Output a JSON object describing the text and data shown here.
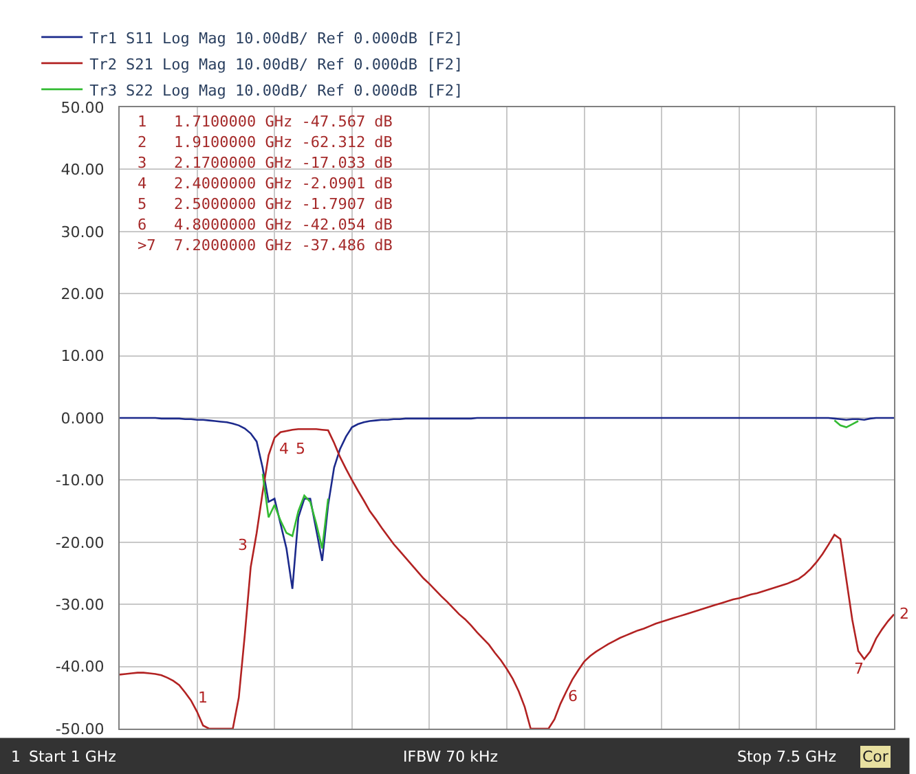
{
  "chart_data": {
    "type": "line",
    "categories": [
      null,
      null,
      null,
      null,
      null,
      null,
      null,
      null,
      null,
      null,
      null,
      null,
      null,
      null,
      null,
      null,
      null,
      null,
      null,
      null,
      null,
      null,
      null,
      null,
      null,
      null,
      null,
      null,
      null,
      null,
      null,
      null,
      null,
      null,
      null,
      null,
      null,
      null,
      null,
      null,
      null,
      null,
      null,
      null,
      null,
      null,
      null,
      null,
      null,
      null,
      null,
      null,
      null,
      null,
      null,
      null,
      null,
      null,
      null,
      null,
      null,
      null,
      null,
      null,
      null,
      null,
      null,
      null,
      null,
      null,
      null,
      null,
      null,
      null,
      null,
      null,
      null,
      null,
      null,
      null,
      null,
      null,
      null,
      null,
      null,
      null,
      null,
      null,
      null,
      null,
      null,
      null,
      null,
      null,
      null,
      null,
      null,
      null,
      null,
      null,
      null,
      null,
      null,
      null,
      null,
      null,
      null,
      null,
      null,
      null,
      null,
      null,
      null,
      null,
      null,
      null,
      null,
      null,
      null,
      null,
      null,
      null,
      null,
      null,
      null,
      null,
      null,
      null,
      null,
      null,
      null
    ],
    "ylim": [
      -50,
      50
    ],
    "yticks": [
      {
        "value": 50,
        "label": "50.00"
      },
      {
        "value": 40,
        "label": "40.00"
      },
      {
        "value": 30,
        "label": "30.00"
      },
      {
        "value": 20,
        "label": "20.00"
      },
      {
        "value": 10,
        "label": "10.00"
      },
      {
        "value": 0,
        "label": "0.000"
      },
      {
        "value": -10,
        "label": "-10.00"
      },
      {
        "value": -20,
        "label": "-20.00"
      },
      {
        "value": -30,
        "label": "-30.00"
      },
      {
        "value": -40,
        "label": "-40.00"
      },
      {
        "value": -50,
        "label": "-50.00"
      }
    ],
    "tick_labels": "y",
    "grid": true,
    "legend": "top left",
    "marker": "none",
    "line_style": "solid",
    "series": [
      {
        "name": "Tr1 S11 Log Mag 10.00dB/ Ref 0.000dB [F2]",
        "color": "#1c2a8c",
        "values": [
          0,
          0,
          0,
          0,
          0,
          0,
          0,
          -0.1,
          -0.1,
          -0.1,
          -0.1,
          -0.2,
          -0.2,
          -0.3,
          -0.3,
          -0.4,
          -0.5,
          -0.6,
          -0.7,
          -0.9,
          -1.2,
          -1.7,
          -2.5,
          -3.8,
          -8,
          -13.5,
          -13,
          -17,
          -21,
          -27.5,
          -16,
          -13,
          -13,
          -18,
          -23,
          -14,
          -8,
          -5,
          -3,
          -1.5,
          -1,
          -0.7,
          -0.5,
          -0.4,
          -0.3,
          -0.3,
          -0.2,
          -0.2,
          -0.1,
          -0.1,
          -0.1,
          -0.1,
          -0.1,
          -0.1,
          -0.1,
          -0.1,
          -0.1,
          -0.1,
          -0.1,
          -0.1,
          0,
          0,
          0,
          0,
          0,
          0,
          0,
          0,
          0,
          0,
          0,
          0,
          0,
          0,
          0,
          0,
          0,
          0,
          0,
          0,
          0,
          0,
          0,
          0,
          0,
          0,
          0,
          0,
          0,
          0,
          0,
          0,
          0,
          0,
          0,
          0,
          0,
          0,
          0,
          0,
          0,
          0,
          0,
          0,
          0,
          0,
          0,
          0,
          0,
          0,
          0,
          0,
          0,
          0,
          0,
          0,
          0,
          0,
          0,
          0,
          -0.1,
          -0.2,
          -0.3,
          -0.2,
          -0.2,
          -0.3,
          -0.1,
          0,
          0,
          0,
          0
        ]
      },
      {
        "name": "Tr2 S21 Log Mag 10.00dB/ Ref 0.000dB [F2]",
        "color": "#b22222",
        "values": [
          -41.3,
          -41.2,
          -41.1,
          -41.0,
          -41.0,
          -41.1,
          -41.2,
          -41.4,
          -41.8,
          -42.3,
          -43.0,
          -44.2,
          -45.5,
          -47.3,
          -49.5,
          -50,
          -50,
          -50,
          -50,
          -50,
          -45,
          -35,
          -24,
          -18.5,
          -12,
          -6,
          -3.2,
          -2.3,
          -2.1,
          -1.9,
          -1.8,
          -1.8,
          -1.8,
          -1.8,
          -1.9,
          -2.0,
          -4,
          -6.3,
          -8.2,
          -10,
          -11.7,
          -13.3,
          -15,
          -16.3,
          -17.7,
          -19,
          -20.3,
          -21.4,
          -22.5,
          -23.6,
          -24.7,
          -25.8,
          -26.7,
          -27.7,
          -28.7,
          -29.6,
          -30.6,
          -31.6,
          -32.4,
          -33.4,
          -34.5,
          -35.5,
          -36.5,
          -37.8,
          -39,
          -40.4,
          -42,
          -44,
          -46.5,
          -50,
          -50,
          -50,
          -50,
          -48.5,
          -46,
          -44,
          -42.1,
          -40.6,
          -39.2,
          -38.3,
          -37.6,
          -37,
          -36.4,
          -35.9,
          -35.4,
          -35,
          -34.6,
          -34.2,
          -33.9,
          -33.5,
          -33.1,
          -32.8,
          -32.5,
          -32.2,
          -31.9,
          -31.6,
          -31.3,
          -31,
          -30.7,
          -30.4,
          -30.1,
          -29.8,
          -29.5,
          -29.2,
          -29,
          -28.7,
          -28.4,
          -28.2,
          -27.9,
          -27.6,
          -27.3,
          -27,
          -26.7,
          -26.3,
          -25.9,
          -25.2,
          -24.3,
          -23.2,
          -21.9,
          -20.4,
          -18.8,
          -19.5,
          -26,
          -32.5,
          -37.5,
          -38.8,
          -37.6,
          -35.5,
          -34,
          -32.7,
          -31.6
        ]
      },
      {
        "name": "Tr3 S22 Log Mag 10.00dB/ Ref 0.000dB [F2]",
        "color": "#33bb33",
        "values": [
          null,
          null,
          null,
          null,
          null,
          null,
          null,
          null,
          null,
          null,
          null,
          null,
          null,
          null,
          null,
          null,
          null,
          null,
          null,
          null,
          null,
          null,
          null,
          null,
          -9,
          -16,
          -14,
          -16.5,
          -18.5,
          -19,
          -15,
          -12.5,
          -13.5,
          -17,
          -21,
          -13,
          null,
          null,
          null,
          null,
          null,
          null,
          null,
          null,
          null,
          null,
          null,
          null,
          null,
          null,
          null,
          null,
          null,
          null,
          null,
          null,
          null,
          null,
          null,
          null,
          null,
          null,
          null,
          null,
          null,
          null,
          null,
          null,
          null,
          null,
          null,
          null,
          null,
          null,
          null,
          null,
          null,
          null,
          null,
          null,
          null,
          null,
          null,
          null,
          null,
          null,
          null,
          null,
          null,
          null,
          null,
          null,
          null,
          null,
          null,
          null,
          null,
          null,
          null,
          null,
          null,
          null,
          null,
          null,
          null,
          null,
          null,
          null,
          null,
          null,
          null,
          null,
          null,
          null,
          null,
          null,
          null,
          null,
          null,
          null,
          -0.4,
          -1.2,
          -1.5,
          -1.0,
          -0.5,
          null,
          null,
          null,
          null,
          null,
          null
        ]
      }
    ],
    "annotations": [
      "1   1.7100000 GHz -47.567 dB",
      "2   1.9100000 GHz -62.312 dB",
      "3   2.1700000 GHz -17.033 dB",
      "4   2.4000000 GHz -2.0901 dB",
      "5   2.5000000 GHz -1.7907 dB",
      "6   4.8000000 GHz -42.054 dB",
      ">7  7.2000000 GHz -37.486 dB",
      "1",
      "3",
      "4",
      "5",
      "6",
      "7",
      "2",
      "1",
      "Start 1 GHz",
      "IFBW 70 kHz",
      "Stop 7.5 GHz",
      "Cor"
    ]
  }
}
